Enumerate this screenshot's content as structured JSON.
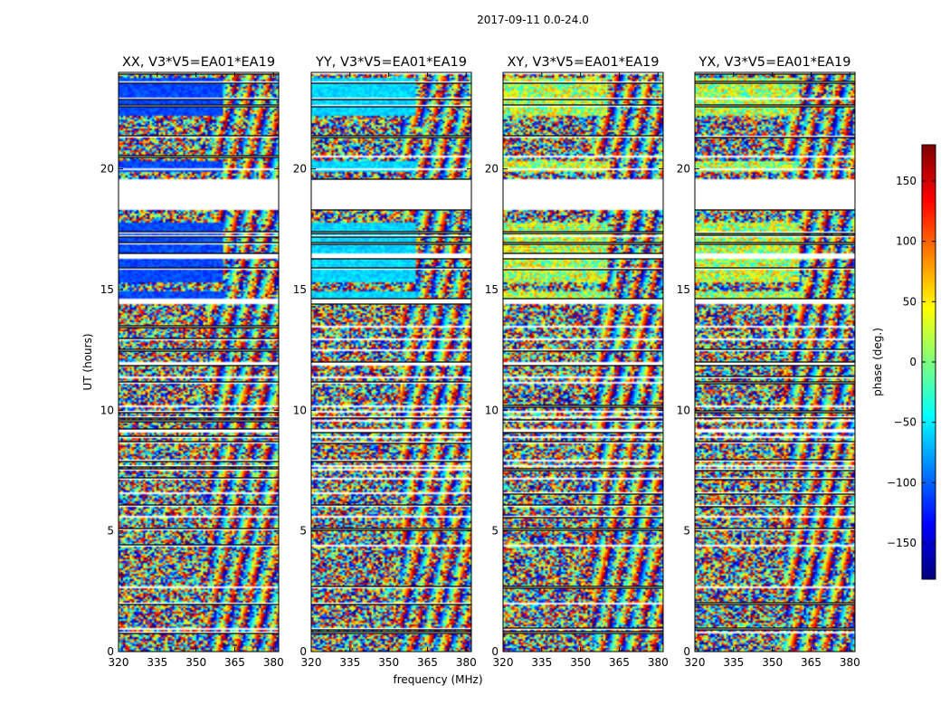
{
  "chart_data": {
    "type": "heatmap",
    "suptitle": "2017-09-11 0.0-24.0",
    "xlabel": "frequency (MHz)",
    "ylabel": "UT (hours)",
    "xlim": [
      320,
      382
    ],
    "ylim": [
      0,
      24
    ],
    "x_ticks": [
      320,
      335,
      350,
      365,
      380
    ],
    "y_ticks": [
      0,
      5,
      10,
      15,
      20
    ],
    "colorbar": {
      "label": "phase (deg.)",
      "range": [
        -180,
        180
      ],
      "ticks": [
        -150,
        -100,
        -50,
        0,
        50,
        100,
        150
      ],
      "colormap": [
        "#00007f",
        "#0000ff",
        "#007fff",
        "#00ffff",
        "#7fff7f",
        "#ffff00",
        "#ff7f00",
        "#ff0000",
        "#7f0000"
      ]
    },
    "panels": [
      {
        "title": "XX, V3*V5=EA01*EA19",
        "calibrator_phase_deg": -110
      },
      {
        "title": "YY, V3*V5=EA01*EA19",
        "calibrator_phase_deg": -60
      },
      {
        "title": "XY, V3*V5=EA01*EA19",
        "calibrator_phase_deg": null
      },
      {
        "title": "YX, V3*V5=EA01*EA19",
        "calibrator_phase_deg": null
      }
    ],
    "flagged_gaps_hours": [
      [
        18.3,
        19.6
      ]
    ],
    "calibrator_scans_hours": [
      [
        14.5,
        14.9
      ],
      [
        15.3,
        17.8
      ],
      [
        19.9,
        20.3
      ],
      [
        22.2,
        23.8
      ]
    ]
  }
}
